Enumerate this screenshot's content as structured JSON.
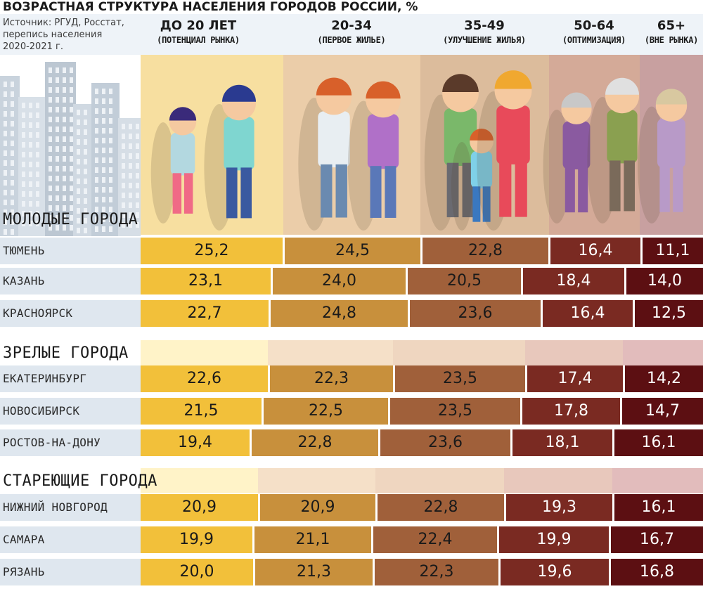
{
  "header": {
    "title": "ВОЗРАСТНАЯ СТРУКТУРА НАСЕЛЕНИЯ ГОРОДОВ РОССИИ, %",
    "source_lines": [
      "Источник: РГУД, Росстат,",
      "перепись населения",
      "2020-2021 г."
    ]
  },
  "colors": {
    "segments": [
      "#f2c03a",
      "#c8903c",
      "#a0603a",
      "#7a2a22",
      "#5c0f12"
    ],
    "segment_text": [
      "#1a1a1a",
      "#1a1a1a",
      "#1a1a1a",
      "#ffffff",
      "#ffffff"
    ],
    "bands": [
      "#f7dfa0",
      "#ebcda9",
      "#dcbc9c",
      "#d4aa98",
      "#c8a0a0"
    ],
    "band_light": [
      "#fff3c8",
      "#f5e0c8",
      "#efd6c0",
      "#e8c8bc",
      "#e2bcbc"
    ],
    "city_name_bg": "#dfe7ef"
  },
  "chart_data": {
    "type": "bar",
    "stacked": "100% horizontal",
    "title": "ВОЗРАСТНАЯ СТРУКТУРА НАСЕЛЕНИЯ ГОРОДОВ РОССИИ, %",
    "series": [
      {
        "name": "до 20 лет",
        "description": "(потенциал рынка)"
      },
      {
        "name": "20-34",
        "description": "(первое жилье)"
      },
      {
        "name": "35-49",
        "description": "(улучшение жилья)"
      },
      {
        "name": "50-64",
        "description": "(оптимизация)"
      },
      {
        "name": "65+",
        "description": "(вне рынка)"
      }
    ],
    "groups": [
      {
        "label": "МОЛОДЫЕ ГОРОДА",
        "rows": [
          {
            "city": "ТЮМЕНЬ",
            "values": [
              25.2,
              24.5,
              22.8,
              16.4,
              11.1
            ],
            "labels": [
              "25,2",
              "24,5",
              "22,8",
              "16,4",
              "11,1"
            ]
          },
          {
            "city": "КАЗАНЬ",
            "values": [
              23.1,
              24.0,
              20.5,
              18.4,
              14.0
            ],
            "labels": [
              "23,1",
              "24,0",
              "20,5",
              "18,4",
              "14,0"
            ]
          },
          {
            "city": "КРАСНОЯРСК",
            "values": [
              22.7,
              24.8,
              23.6,
              16.4,
              12.5
            ],
            "labels": [
              "22,7",
              "24,8",
              "23,6",
              "16,4",
              "12,5"
            ]
          }
        ]
      },
      {
        "label": "ЗРЕЛЫЕ ГОРОДА",
        "rows": [
          {
            "city": "ЕКАТЕРИНБУРГ",
            "values": [
              22.6,
              22.3,
              23.5,
              17.4,
              14.2
            ],
            "labels": [
              "22,6",
              "22,3",
              "23,5",
              "17,4",
              "14,2"
            ]
          },
          {
            "city": "НОВОСИБИРСК",
            "values": [
              21.5,
              22.5,
              23.5,
              17.8,
              14.7
            ],
            "labels": [
              "21,5",
              "22,5",
              "23,5",
              "17,8",
              "14,7"
            ]
          },
          {
            "city": "РОСТОВ-НА-ДОНУ",
            "values": [
              19.4,
              22.8,
              23.6,
              18.1,
              16.1
            ],
            "labels": [
              "19,4",
              "22,8",
              "23,6",
              "18,1",
              "16,1"
            ]
          }
        ]
      },
      {
        "label": "СТАРЕЮЩИЕ ГОРОДА",
        "rows": [
          {
            "city": "НИЖНИЙ НОВГОРОД",
            "values": [
              20.9,
              20.9,
              22.8,
              19.3,
              16.1
            ],
            "labels": [
              "20,9",
              "20,9",
              "22,8",
              "19,3",
              "16,1"
            ]
          },
          {
            "city": "САМАРА",
            "values": [
              19.9,
              21.1,
              22.4,
              19.9,
              16.7
            ],
            "labels": [
              "19,9",
              "21,1",
              "22,4",
              "19,9",
              "16,7"
            ]
          },
          {
            "city": "РЯЗАНЬ",
            "values": [
              20.0,
              21.3,
              22.3,
              19.6,
              16.8
            ],
            "labels": [
              "20,0",
              "21,3",
              "22,3",
              "19,6",
              "16,8"
            ]
          }
        ]
      }
    ]
  }
}
